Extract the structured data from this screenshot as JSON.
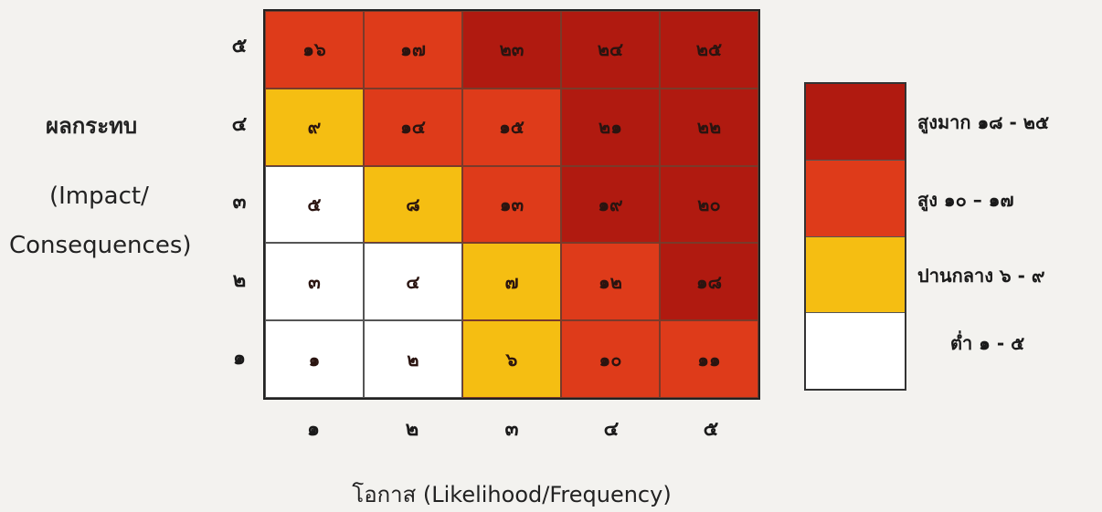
{
  "y_axis": {
    "title_thai": "ผลกระทบ",
    "title_en_line1": "(Impact/",
    "title_en_line2": "Consequences)",
    "ticks": [
      "๕",
      "๔",
      "๓",
      "๒",
      "๑"
    ]
  },
  "x_axis": {
    "title": "โอกาส (Likelihood/Frequency)",
    "ticks": [
      "๑",
      "๒",
      "๓",
      "๔",
      "๕"
    ]
  },
  "matrix": {
    "rows": [
      [
        {
          "value": "๑๖",
          "level": "high"
        },
        {
          "value": "๑๗",
          "level": "high"
        },
        {
          "value": "๒๓",
          "level": "very_high"
        },
        {
          "value": "๒๔",
          "level": "very_high"
        },
        {
          "value": "๒๕",
          "level": "very_high"
        }
      ],
      [
        {
          "value": "๙",
          "level": "medium"
        },
        {
          "value": "๑๔",
          "level": "high"
        },
        {
          "value": "๑๕",
          "level": "high"
        },
        {
          "value": "๒๑",
          "level": "very_high"
        },
        {
          "value": "๒๒",
          "level": "very_high"
        }
      ],
      [
        {
          "value": "๕",
          "level": "low"
        },
        {
          "value": "๘",
          "level": "medium"
        },
        {
          "value": "๑๓",
          "level": "high"
        },
        {
          "value": "๑๙",
          "level": "very_high"
        },
        {
          "value": "๒๐",
          "level": "very_high"
        }
      ],
      [
        {
          "value": "๓",
          "level": "low"
        },
        {
          "value": "๔",
          "level": "low"
        },
        {
          "value": "๗",
          "level": "medium"
        },
        {
          "value": "๑๒",
          "level": "high"
        },
        {
          "value": "๑๘",
          "level": "very_high"
        }
      ],
      [
        {
          "value": "๑",
          "level": "low"
        },
        {
          "value": "๒",
          "level": "low"
        },
        {
          "value": "๖",
          "level": "medium"
        },
        {
          "value": "๑๐",
          "level": "high"
        },
        {
          "value": "๑๑",
          "level": "high"
        }
      ]
    ]
  },
  "colors": {
    "very_high": "#b01a10",
    "high": "#de3b1a",
    "medium": "#f5be12",
    "low": "#ffffff"
  },
  "legend": [
    {
      "level": "very_high",
      "label": "สูงมาก ๑๘ - ๒๕"
    },
    {
      "level": "high",
      "label": "สูง ๑๐ – ๑๗"
    },
    {
      "level": "medium",
      "label": "ปานกลาง ๖ - ๙"
    },
    {
      "level": "low",
      "label": "ต่ำ ๑ - ๕"
    }
  ]
}
